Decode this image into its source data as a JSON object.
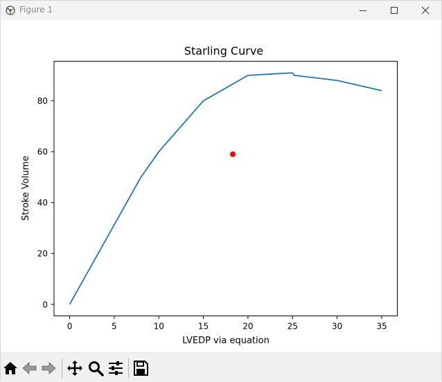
{
  "window": {
    "title": "Figure 1"
  },
  "toolbar": {
    "buttons": [
      {
        "name": "home-icon"
      },
      {
        "name": "back-icon"
      },
      {
        "name": "forward-icon"
      },
      {
        "name": "pan-icon"
      },
      {
        "name": "zoom-icon"
      },
      {
        "name": "configure-subplots-icon"
      },
      {
        "name": "save-icon"
      }
    ]
  },
  "chart_data": {
    "type": "line",
    "title": "Starling Curve",
    "xlabel": "LVEDP via equation",
    "ylabel": "Stroke Volume",
    "xlim": [
      -1.75,
      36.75
    ],
    "ylim": [
      -4.55,
      95.55
    ],
    "xticks": [
      0,
      5,
      10,
      15,
      20,
      25,
      30,
      35
    ],
    "yticks": [
      0,
      20,
      40,
      60,
      80
    ],
    "grid": false,
    "series": [
      {
        "color": "#1f77b4",
        "x": [
          0,
          8,
          10,
          15,
          20,
          25,
          25.2,
          30,
          35
        ],
        "y": [
          0,
          50,
          60,
          80,
          90,
          91,
          90,
          88,
          84
        ]
      }
    ],
    "points": [
      {
        "x": 18.3,
        "y": 59,
        "color": "#ff0000"
      }
    ]
  }
}
